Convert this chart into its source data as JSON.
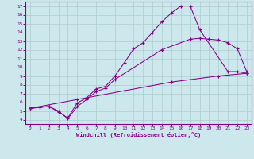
{
  "xlabel": "Windchill (Refroidissement éolien,°C)",
  "bg_color": "#cce8ec",
  "line_color": "#880088",
  "grid_color": "#aacccc",
  "xlim": [
    -0.5,
    23.5
  ],
  "ylim": [
    3.5,
    17.5
  ],
  "xticks": [
    0,
    1,
    2,
    3,
    4,
    5,
    6,
    7,
    8,
    9,
    10,
    11,
    12,
    13,
    14,
    15,
    16,
    17,
    18,
    19,
    20,
    21,
    22,
    23
  ],
  "yticks": [
    4,
    5,
    6,
    7,
    8,
    9,
    10,
    11,
    12,
    13,
    14,
    15,
    16,
    17
  ],
  "c1x": [
    0,
    1,
    2,
    3,
    4,
    5,
    6,
    7,
    8,
    9,
    10,
    11,
    12,
    13,
    14,
    15,
    16,
    17,
    18,
    21,
    22,
    23
  ],
  "c1y": [
    5.3,
    5.4,
    5.5,
    4.9,
    4.2,
    5.9,
    6.5,
    7.5,
    7.8,
    9.0,
    10.5,
    12.1,
    12.8,
    14.0,
    15.2,
    16.2,
    17.0,
    17.0,
    14.3,
    9.5,
    9.5,
    9.3
  ],
  "c2x": [
    0,
    2,
    3,
    4,
    5,
    6,
    7,
    8,
    9,
    14,
    17,
    18,
    19,
    20,
    21,
    22,
    23
  ],
  "c2y": [
    5.3,
    5.5,
    5.0,
    4.1,
    5.5,
    6.3,
    7.2,
    7.6,
    8.6,
    12.0,
    13.2,
    13.3,
    13.2,
    13.1,
    12.8,
    12.1,
    9.5
  ],
  "c3x": [
    0,
    5,
    10,
    15,
    20,
    23
  ],
  "c3y": [
    5.3,
    6.3,
    7.3,
    8.3,
    9.0,
    9.3
  ]
}
